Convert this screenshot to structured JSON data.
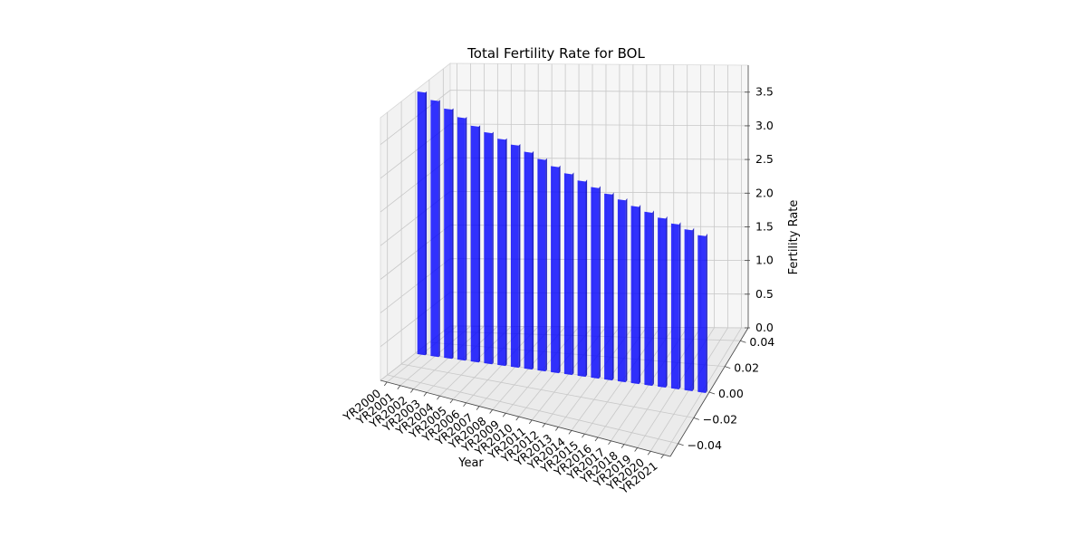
{
  "chart_data": {
    "type": "bar",
    "title": "Total Fertility Rate for BOL",
    "xlabel": "Year",
    "ylabel": "",
    "zlabel": "Fertility Rate",
    "categories": [
      "YR2000",
      "YR2001",
      "YR2002",
      "YR2003",
      "YR2004",
      "YR2005",
      "YR2006",
      "YR2007",
      "YR2008",
      "YR2009",
      "YR2010",
      "YR2011",
      "YR2012",
      "YR2013",
      "YR2014",
      "YR2015",
      "YR2016",
      "YR2017",
      "YR2018",
      "YR2019",
      "YR2020",
      "YR2021"
    ],
    "values": [
      3.9,
      3.8,
      3.7,
      3.6,
      3.5,
      3.43,
      3.36,
      3.3,
      3.22,
      3.14,
      3.06,
      2.98,
      2.9,
      2.83,
      2.76,
      2.7,
      2.63,
      2.57,
      2.51,
      2.45,
      2.39,
      2.33
    ],
    "y_ticks": [
      "0.04",
      "0.02",
      "0.00",
      "−0.02",
      "−0.04"
    ],
    "z_ticks": [
      "0.0",
      "0.5",
      "1.0",
      "1.5",
      "2.0",
      "2.5",
      "3.0",
      "3.5"
    ],
    "zlim": [
      0,
      3.9
    ],
    "bar_color": "#0000ff",
    "grid": true
  }
}
